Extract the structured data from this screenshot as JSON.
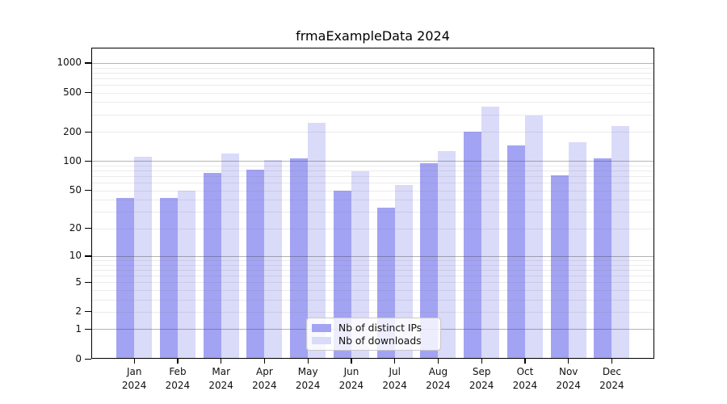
{
  "chart_data": {
    "type": "bar",
    "title": "frmaExampleData 2024",
    "categories": [
      "Jan 2024",
      "Feb 2024",
      "Mar 2024",
      "Apr 2024",
      "May 2024",
      "Jun 2024",
      "Jul 2024",
      "Aug 2024",
      "Sep 2024",
      "Oct 2024",
      "Nov 2024",
      "Dec 2024"
    ],
    "series": [
      {
        "name": "Nb of distinct IPs",
        "color": "#a3a3f3",
        "values": [
          42,
          42,
          76,
          82,
          107,
          50,
          33,
          95,
          201,
          144,
          72,
          107
        ]
      },
      {
        "name": "Nb of downloads",
        "color": "#dadaf9",
        "values": [
          110,
          50,
          120,
          102,
          248,
          79,
          57,
          128,
          362,
          291,
          156,
          228
        ]
      }
    ],
    "y_scale": "log1p",
    "y_ticks": [
      0,
      1,
      2,
      5,
      10,
      20,
      50,
      100,
      200,
      500,
      1000
    ],
    "y_major_gridlines": [
      1,
      10,
      100,
      1000
    ],
    "ylim": [
      0,
      1400
    ],
    "grid": "horizontal",
    "legend_position": "bottom-center",
    "colors": {
      "bar_distinct_ips": "#a3a3f3",
      "bar_downloads": "#dadaf9",
      "major_grid": "#aaaaaa",
      "minor_grid": "#eaeaea",
      "spine": "#000000",
      "text": "#111111"
    }
  }
}
